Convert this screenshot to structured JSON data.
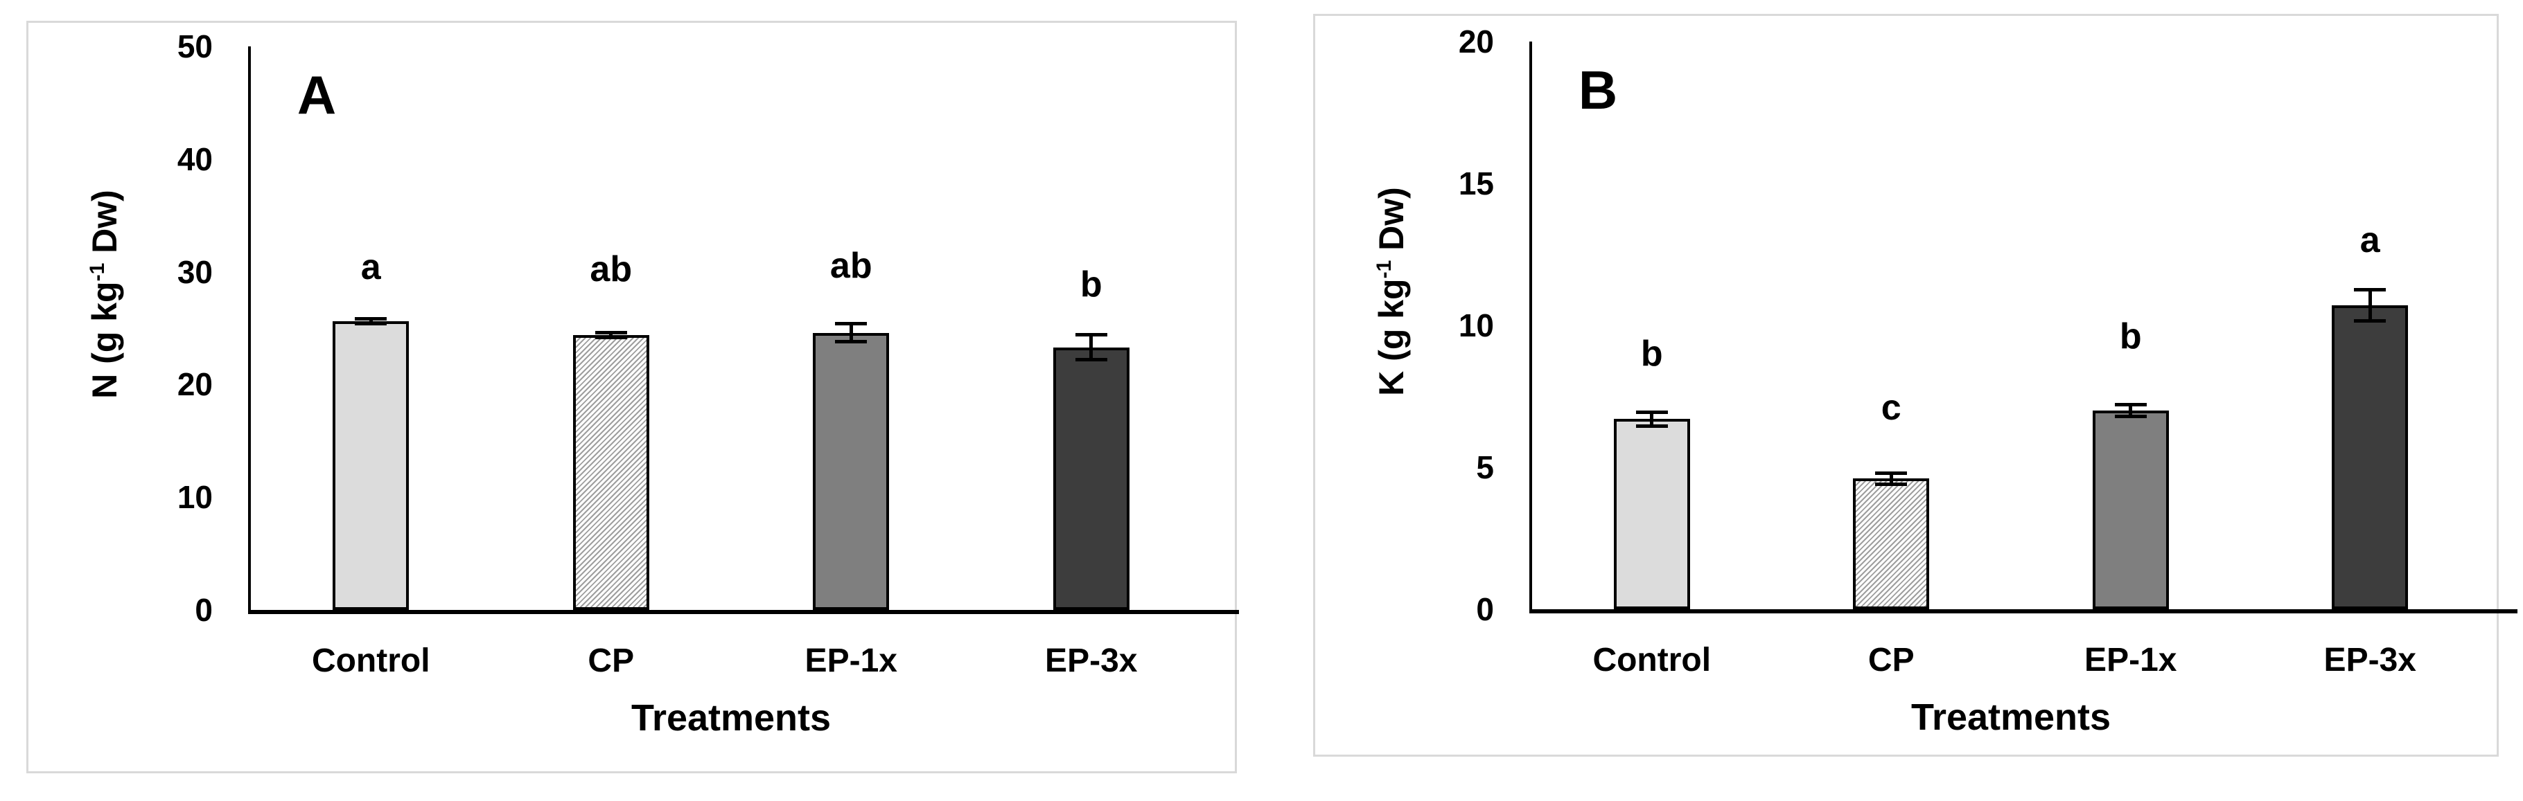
{
  "figure": {
    "background_color": "#ffffff",
    "panel_border_color": "#d9d9d9",
    "axis_color": "#000000",
    "error_bar_color": "#000000"
  },
  "chart_data": [
    {
      "type": "bar",
      "panel_label": "A",
      "ylabel_prefix": "N (g kg",
      "ylabel_sup": "-1",
      "ylabel_suffix": " Dw)",
      "xlabel": "Treatments",
      "categories": [
        "Control",
        "CP",
        "EP-1x",
        "EP-3x"
      ],
      "values": [
        25.6,
        24.4,
        24.6,
        23.3
      ],
      "errors": [
        0.2,
        0.2,
        0.8,
        1.1
      ],
      "sig_letters": [
        "a",
        "ab",
        "ab",
        "b"
      ],
      "sig_letter_y": [
        30.4,
        30.2,
        30.5,
        28.9
      ],
      "ylim": [
        0,
        50
      ],
      "yticks": [
        0,
        10,
        20,
        30,
        40,
        50
      ],
      "grid": false,
      "legend": "none",
      "bar_styles": [
        {
          "name": "light-gray-solid",
          "fill": "#dcdcdc",
          "hatch": false
        },
        {
          "name": "diagonal-hatch",
          "fill": "#ffffff",
          "hatch": true,
          "hatch_color": "#9e9e9e"
        },
        {
          "name": "medium-gray-solid",
          "fill": "#7f7f7f",
          "hatch": false
        },
        {
          "name": "dark-gray-solid",
          "fill": "#3d3d3d",
          "hatch": false
        }
      ]
    },
    {
      "type": "bar",
      "panel_label": "B",
      "ylabel_prefix": "K (g kg",
      "ylabel_sup": "-1",
      "ylabel_suffix": " Dw)",
      "xlabel": "Treatments",
      "categories": [
        "Control",
        "CP",
        "EP-1x",
        "EP-3x"
      ],
      "values": [
        6.7,
        4.6,
        7.0,
        10.7
      ],
      "errors": [
        0.25,
        0.2,
        0.2,
        0.55
      ],
      "sig_letters": [
        "b",
        "c",
        "b",
        "a"
      ],
      "sig_letter_y": [
        9.0,
        7.1,
        9.6,
        13.0
      ],
      "ylim": [
        0,
        20
      ],
      "yticks": [
        0,
        5,
        10,
        15,
        20
      ],
      "grid": false,
      "legend": "none",
      "bar_styles": [
        {
          "name": "light-gray-solid",
          "fill": "#dcdcdc",
          "hatch": false
        },
        {
          "name": "diagonal-hatch",
          "fill": "#ffffff",
          "hatch": true,
          "hatch_color": "#9e9e9e"
        },
        {
          "name": "medium-gray-solid",
          "fill": "#7f7f7f",
          "hatch": false
        },
        {
          "name": "dark-gray-solid",
          "fill": "#3d3d3d",
          "hatch": false
        }
      ]
    }
  ]
}
